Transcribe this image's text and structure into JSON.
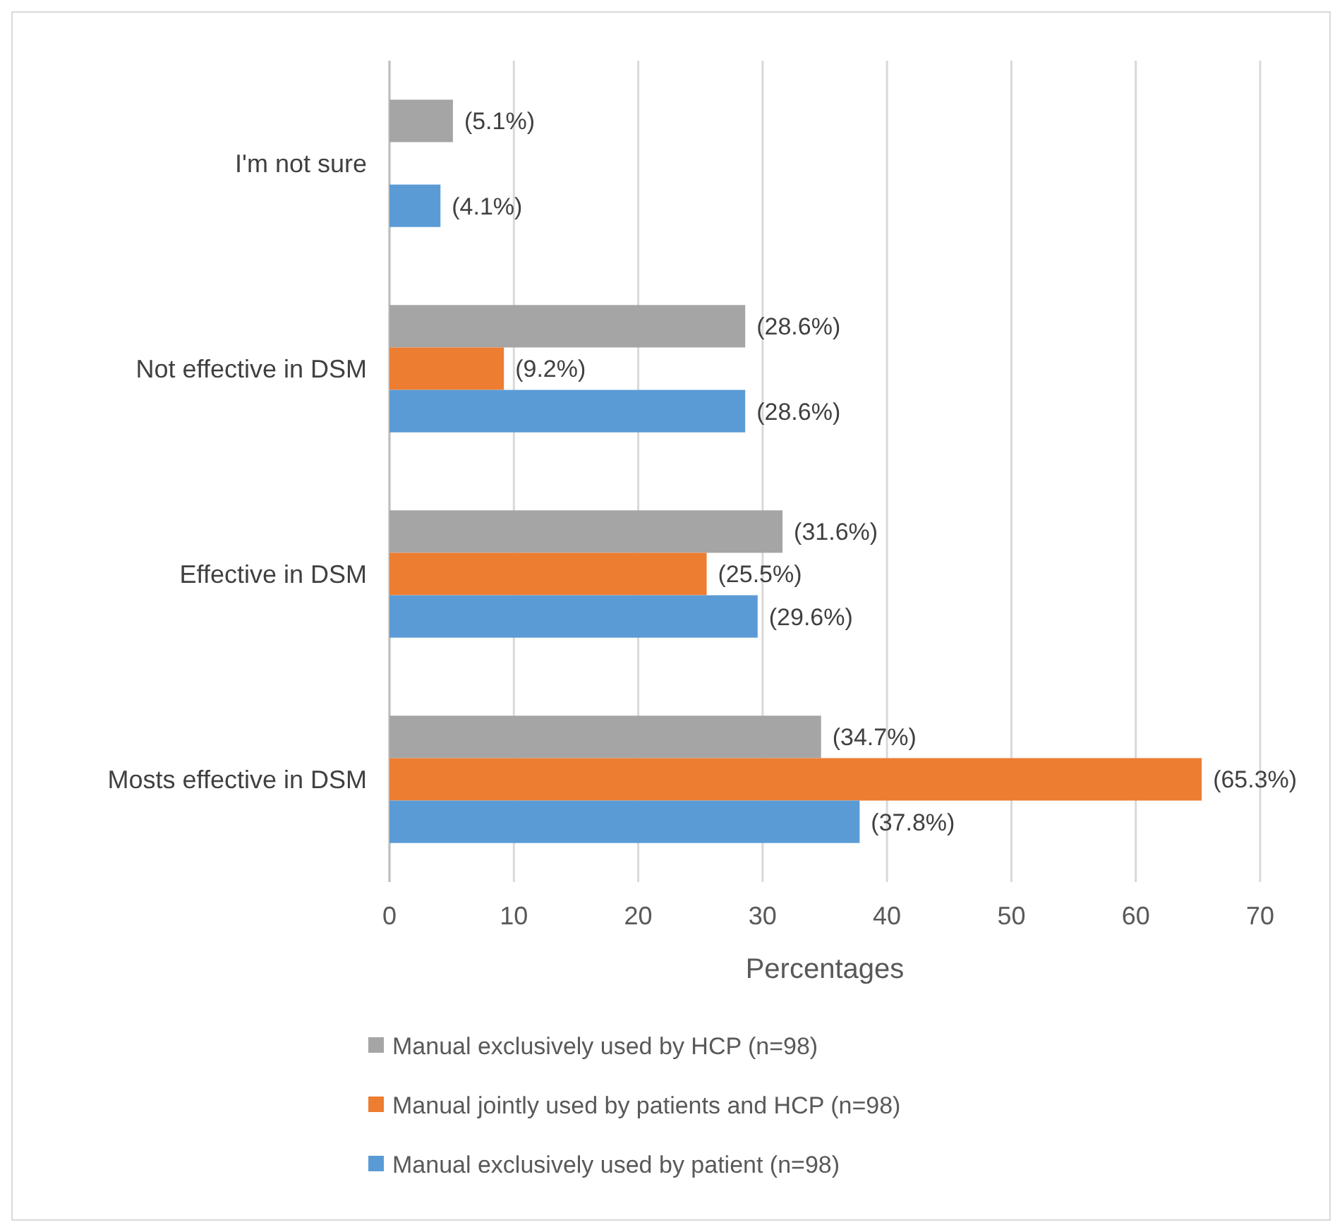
{
  "chart_data": {
    "type": "bar",
    "orientation": "horizontal",
    "xlabel": "Percentages",
    "categories": [
      "I'm not sure",
      "Not effective in DSM",
      "Effective in DSM",
      "Mosts effective in DSM"
    ],
    "series": [
      {
        "name": "Manual exclusively used by HCP (n=98)",
        "color": "#a5a5a5",
        "values": [
          5.1,
          28.6,
          31.6,
          34.7
        ],
        "value_labels": [
          "(5.1%)",
          "(28.6%)",
          "(31.6%)",
          "(34.7%)"
        ]
      },
      {
        "name": "Manual jointly used by patients and HCP (n=98)",
        "color": "#ed7d31",
        "values": [
          null,
          9.2,
          25.5,
          65.3
        ],
        "value_labels": [
          null,
          "(9.2%)",
          "(25.5%)",
          "(65.3%)"
        ]
      },
      {
        "name": "Manual exclusively used by patient (n=98)",
        "color": "#5b9bd5",
        "values": [
          4.1,
          28.6,
          29.6,
          37.8
        ],
        "value_labels": [
          "(4.1%)",
          "(28.6%)",
          "(29.6%)",
          "(37.8%)"
        ]
      }
    ],
    "xlim": [
      0,
      70
    ],
    "xticks": [
      0,
      10,
      20,
      30,
      40,
      50,
      60,
      70
    ],
    "grid": "x",
    "legend": "bottom"
  }
}
